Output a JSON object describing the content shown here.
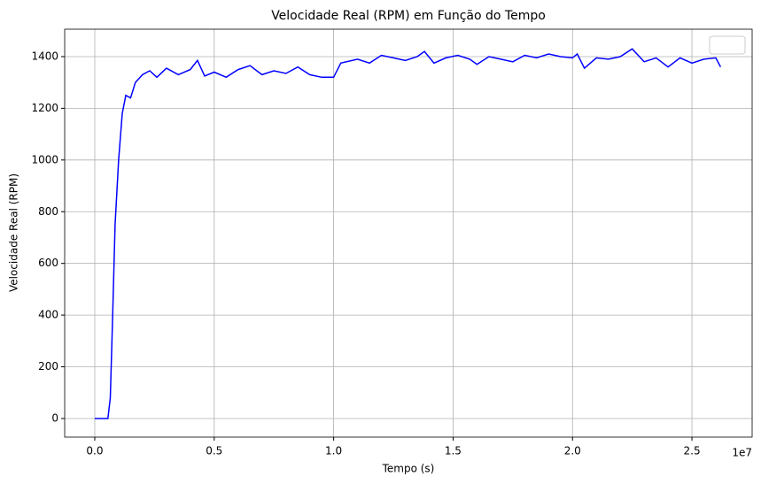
{
  "chart_data": {
    "type": "line",
    "title": "Velocidade Real (RPM) em Função do Tempo",
    "xlabel": "Tempo (s)",
    "ylabel": "Velocidade Real (RPM)",
    "x_offset_label": "1e7",
    "x": [
      0,
      300000,
      550000,
      650000,
      750000,
      850000,
      1000000,
      1150000,
      1300000,
      1500000,
      1700000,
      2000000,
      2300000,
      2600000,
      3000000,
      3500000,
      4000000,
      4300000,
      4600000,
      5000000,
      5500000,
      6000000,
      6500000,
      7000000,
      7500000,
      8000000,
      8500000,
      9000000,
      9500000,
      10000000,
      10300000,
      11000000,
      11500000,
      12000000,
      12500000,
      13000000,
      13500000,
      13800000,
      14200000,
      14700000,
      15200000,
      15700000,
      16000000,
      16500000,
      17000000,
      17500000,
      18000000,
      18500000,
      19000000,
      19500000,
      20000000,
      20200000,
      20500000,
      21000000,
      21500000,
      22000000,
      22500000,
      23000000,
      23500000,
      24000000,
      24500000,
      25000000,
      25500000,
      26000000,
      26200000
    ],
    "series": [
      {
        "color": "#0000ff",
        "values": [
          0,
          0,
          0,
          80,
          400,
          750,
          1000,
          1180,
          1250,
          1240,
          1300,
          1330,
          1345,
          1320,
          1355,
          1330,
          1350,
          1385,
          1325,
          1340,
          1320,
          1350,
          1365,
          1330,
          1345,
          1335,
          1360,
          1330,
          1320,
          1320,
          1375,
          1390,
          1375,
          1405,
          1395,
          1385,
          1400,
          1420,
          1375,
          1395,
          1405,
          1390,
          1370,
          1400,
          1390,
          1380,
          1405,
          1395,
          1410,
          1400,
          1395,
          1410,
          1355,
          1395,
          1390,
          1400,
          1430,
          1380,
          1395,
          1360,
          1395,
          1375,
          1390,
          1395,
          1360
        ]
      }
    ],
    "xlim": [
      -1260000,
      27520000
    ],
    "ylim": [
      -72,
      1506
    ],
    "xticks": [
      {
        "value": 0,
        "label": "0.0"
      },
      {
        "value": 5000000,
        "label": "0.5"
      },
      {
        "value": 10000000,
        "label": "1.0"
      },
      {
        "value": 15000000,
        "label": "1.5"
      },
      {
        "value": 20000000,
        "label": "2.0"
      },
      {
        "value": 25000000,
        "label": "2.5"
      }
    ],
    "yticks": [
      0,
      200,
      400,
      600,
      800,
      1000,
      1200,
      1400
    ],
    "grid": true
  }
}
